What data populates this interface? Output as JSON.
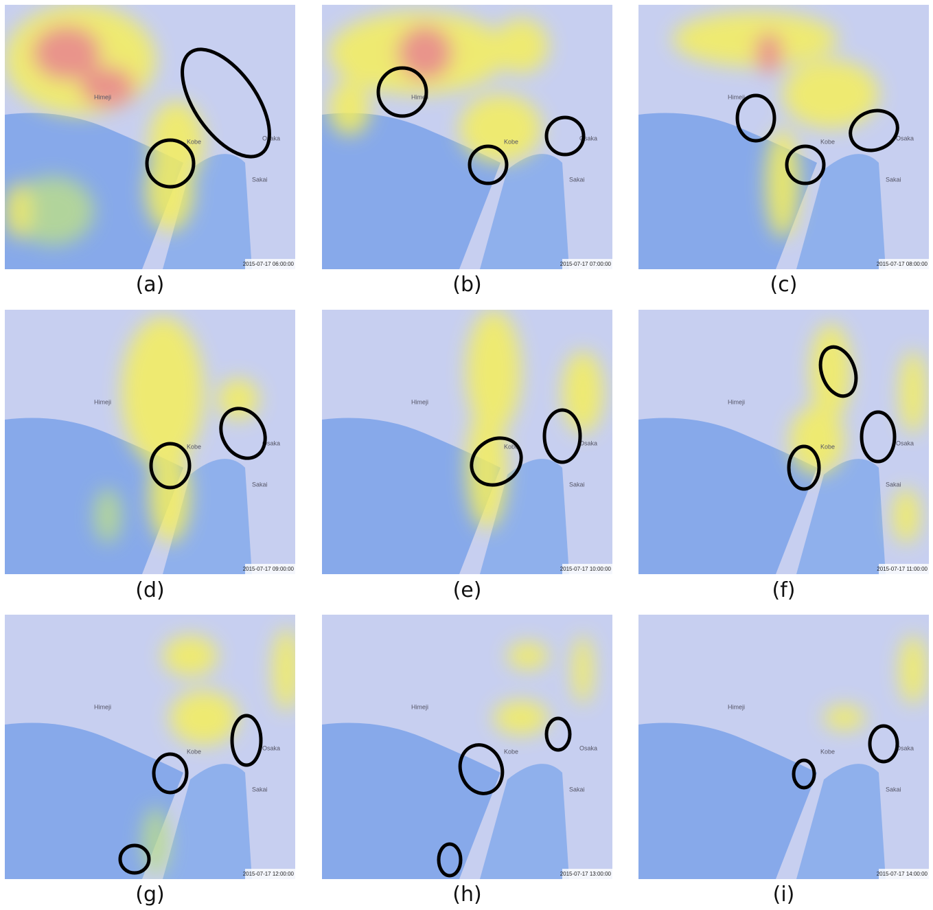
{
  "map_labels": [
    "Himeji",
    "Kobe",
    "Osaka",
    "Sakai"
  ],
  "panels": [
    {
      "caption": "(a)",
      "timestamp": "2015-07-17 06:00:00"
    },
    {
      "caption": "(b)",
      "timestamp": "2015-07-17 07:00:00"
    },
    {
      "caption": "(c)",
      "timestamp": "2015-07-17 08:00:00"
    },
    {
      "caption": "(d)",
      "timestamp": "2015-07-17 09:00:00"
    },
    {
      "caption": "(e)",
      "timestamp": "2015-07-17 10:00:00"
    },
    {
      "caption": "(f)",
      "timestamp": "2015-07-17 11:00:00"
    },
    {
      "caption": "(g)",
      "timestamp": "2015-07-17 12:00:00"
    },
    {
      "caption": "(h)",
      "timestamp": "2015-07-17 13:00:00"
    },
    {
      "caption": "(i)",
      "timestamp": "2015-07-17 14:00:00"
    }
  ]
}
